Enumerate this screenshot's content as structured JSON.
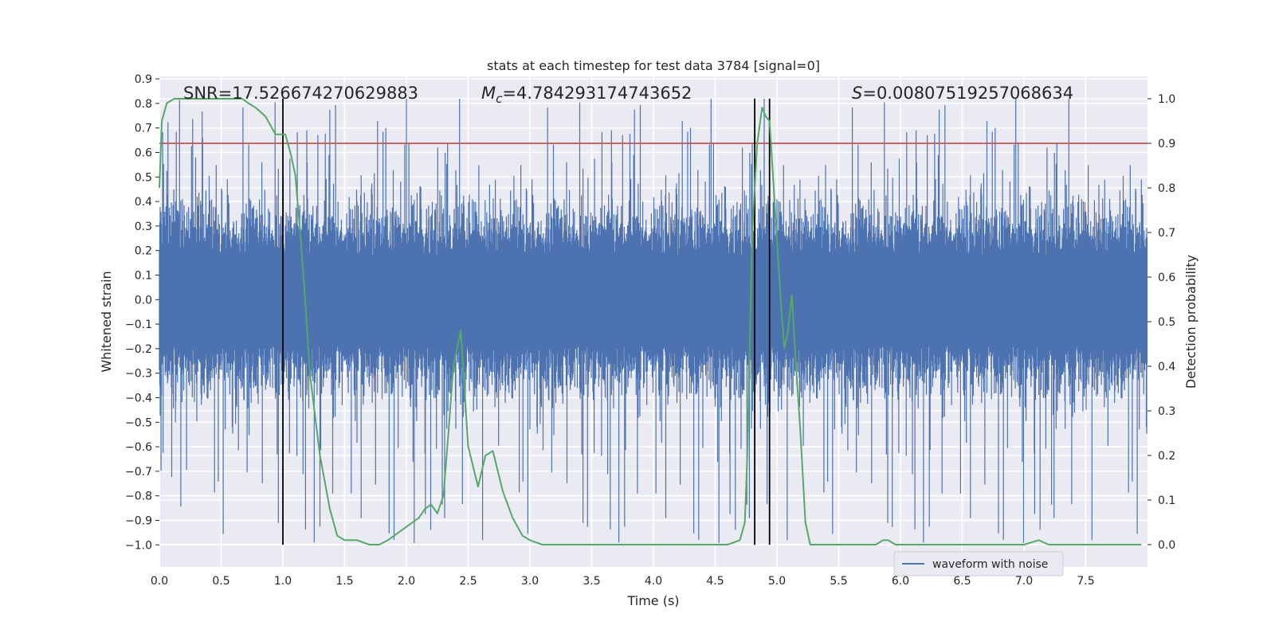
{
  "chart_data": {
    "type": "line",
    "title": "stats at each timestep for test data 3784 [signal=0]",
    "xlabel": "Time (s)",
    "ylabel_left": "Whitened strain",
    "ylabel_right": "Detection probability",
    "xlim": [
      0.0,
      8.0
    ],
    "ylim_left": [
      -1.09,
      0.91
    ],
    "ylim_right": [
      -0.05,
      1.05
    ],
    "x_ticks": [
      "0.0",
      "0.5",
      "1.0",
      "1.5",
      "2.0",
      "2.5",
      "3.0",
      "3.5",
      "4.0",
      "4.5",
      "5.0",
      "5.5",
      "6.0",
      "6.5",
      "7.0",
      "7.5"
    ],
    "y_ticks_left": [
      "0.9",
      "0.8",
      "0.7",
      "0.6",
      "0.5",
      "0.4",
      "0.3",
      "0.2",
      "0.1",
      "0.0",
      "-0.1",
      "-0.2",
      "-0.3",
      "-0.4",
      "-0.5",
      "-0.6",
      "-0.7",
      "-0.8",
      "-0.9",
      "-1.0"
    ],
    "y_ticks_right": [
      "1.0",
      "0.9",
      "0.8",
      "0.7",
      "0.6",
      "0.5",
      "0.4",
      "0.3",
      "0.2",
      "0.1",
      "0.0"
    ],
    "grid": true,
    "annotations": {
      "snr": "SNR=17.526674270629883",
      "mc_prefix": "M",
      "mc_sub": "c",
      "mc_value": "=4.784293174743652",
      "s_prefix": "S",
      "s_value": "=0.00807519257068634"
    },
    "threshold": {
      "value": 0.9,
      "color": "#c44e52"
    },
    "vlines": [
      1.0,
      4.82,
      4.94
    ],
    "legend": {
      "label": "waveform with noise",
      "position": "lower-right"
    },
    "series": [
      {
        "name": "waveform with noise",
        "axis": "left",
        "color": "#4c72b0",
        "kind": "noise",
        "base_amplitude": 0.3,
        "spike_max": 0.82,
        "spike_min": -1.0
      },
      {
        "axis": "right",
        "color": "#55a868",
        "x": [
          0.0,
          0.02,
          0.06,
          0.12,
          0.2,
          0.3,
          0.4,
          0.5,
          0.6,
          0.67,
          0.72,
          0.78,
          0.82,
          0.86,
          0.9,
          0.94,
          0.98,
          1.02,
          1.06,
          1.1,
          1.14,
          1.18,
          1.22,
          1.3,
          1.38,
          1.44,
          1.5,
          1.6,
          1.7,
          1.78,
          1.85,
          1.9,
          1.95,
          2.0,
          2.05,
          2.1,
          2.15,
          2.2,
          2.25,
          2.3,
          2.34,
          2.38,
          2.44,
          2.5,
          2.58,
          2.64,
          2.7,
          2.78,
          2.86,
          2.94,
          3.0,
          3.1,
          3.2,
          3.3,
          3.4,
          3.6,
          3.8,
          4.0,
          4.2,
          4.4,
          4.6,
          4.7,
          4.74,
          4.76,
          4.8,
          4.84,
          4.88,
          4.91,
          4.94,
          4.97,
          5.0,
          5.03,
          5.06,
          5.09,
          5.12,
          5.15,
          5.19,
          5.23,
          5.27,
          5.4,
          5.6,
          5.8,
          5.86,
          5.9,
          5.96,
          6.0,
          6.2,
          6.4,
          6.6,
          6.8,
          7.0,
          7.12,
          7.2,
          7.4,
          7.6,
          7.8,
          7.95
        ],
        "y": [
          0.8,
          0.95,
          0.99,
          1.0,
          1.0,
          1.0,
          1.0,
          1.0,
          1.0,
          1.0,
          0.99,
          0.98,
          0.97,
          0.96,
          0.94,
          0.92,
          0.92,
          0.92,
          0.88,
          0.83,
          0.7,
          0.55,
          0.38,
          0.2,
          0.08,
          0.02,
          0.01,
          0.01,
          0.0,
          0.0,
          0.01,
          0.02,
          0.03,
          0.04,
          0.05,
          0.06,
          0.08,
          0.09,
          0.07,
          0.11,
          0.25,
          0.4,
          0.48,
          0.22,
          0.13,
          0.2,
          0.21,
          0.12,
          0.06,
          0.02,
          0.01,
          0.0,
          0.0,
          0.0,
          0.0,
          0.0,
          0.0,
          0.0,
          0.0,
          0.0,
          0.0,
          0.01,
          0.05,
          0.2,
          0.7,
          0.9,
          0.98,
          0.96,
          0.95,
          0.82,
          0.68,
          0.55,
          0.44,
          0.48,
          0.56,
          0.42,
          0.25,
          0.05,
          0.0,
          0.0,
          0.0,
          0.0,
          0.01,
          0.01,
          0.0,
          0.0,
          0.0,
          0.0,
          0.0,
          0.0,
          0.0,
          0.01,
          0.0,
          0.0,
          0.0,
          0.0,
          0.0
        ]
      }
    ]
  }
}
